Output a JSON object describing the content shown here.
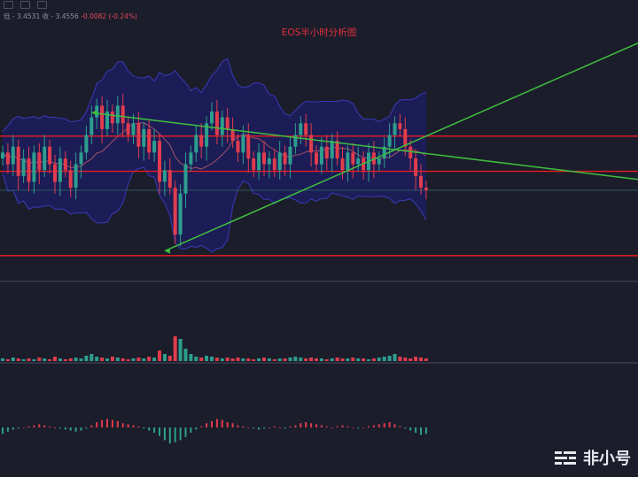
{
  "title": "EOS半小时分析图",
  "ohlc": {
    "low": "低 - 3.4531",
    "close": "收 - 3.4556",
    "change": "-0.0082 (-0.24%)"
  },
  "watermark": "非小号",
  "toolbar_icons": [
    "chart-type-icon",
    "settings-icon",
    "fullscreen-icon"
  ],
  "colors": {
    "background": "#1b1d2b",
    "candle_up": "#2e9e8e",
    "candle_down": "#e03c4d",
    "bollinger_fill": "#1e1e7a",
    "trendline": "#3fbf3f",
    "support_resistance": "#e81c22"
  },
  "chart_data": {
    "type": "candlestick",
    "title": "EOS半小时分析图",
    "close": [
      3.52,
      3.5,
      3.53,
      3.48,
      3.51,
      3.47,
      3.52,
      3.49,
      3.53,
      3.5,
      3.47,
      3.51,
      3.49,
      3.46,
      3.5,
      3.52,
      3.55,
      3.58,
      3.6,
      3.56,
      3.59,
      3.57,
      3.6,
      3.57,
      3.55,
      3.57,
      3.53,
      3.56,
      3.52,
      3.54,
      3.47,
      3.49,
      3.46,
      3.38,
      3.45,
      3.5,
      3.52,
      3.55,
      3.53,
      3.57,
      3.59,
      3.55,
      3.58,
      3.56,
      3.54,
      3.52,
      3.55,
      3.51,
      3.49,
      3.52,
      3.5,
      3.51,
      3.49,
      3.52,
      3.5,
      3.53,
      3.55,
      3.57,
      3.55,
      3.52,
      3.5,
      3.53,
      3.51,
      3.54,
      3.51,
      3.49,
      3.52,
      3.5,
      3.51,
      3.49,
      3.52,
      3.5,
      3.51,
      3.53,
      3.55,
      3.57,
      3.56,
      3.53,
      3.51,
      3.48,
      3.46,
      3.456
    ],
    "volume": [
      3,
      2,
      4,
      3,
      2,
      3,
      2,
      4,
      3,
      2,
      5,
      3,
      2,
      3,
      4,
      3,
      6,
      8,
      5,
      4,
      3,
      5,
      4,
      3,
      2,
      3,
      4,
      3,
      5,
      4,
      12,
      8,
      6,
      28,
      25,
      14,
      8,
      5,
      4,
      6,
      5,
      4,
      3,
      4,
      3,
      4,
      3,
      3,
      2,
      3,
      4,
      3,
      2,
      3,
      3,
      4,
      5,
      4,
      3,
      4,
      3,
      3,
      2,
      3,
      4,
      3,
      3,
      4,
      3,
      3,
      2,
      3,
      4,
      5,
      6,
      8,
      5,
      4,
      3,
      5,
      4,
      3
    ],
    "macd": [
      -6,
      -4,
      -2,
      -1,
      0,
      1,
      2,
      3,
      2,
      1,
      0,
      -1,
      -2,
      -3,
      -4,
      -3,
      -1,
      2,
      5,
      7,
      8,
      7,
      6,
      4,
      3,
      2,
      1,
      -1,
      -3,
      -5,
      -8,
      -12,
      -15,
      -14,
      -12,
      -9,
      -5,
      -2,
      1,
      4,
      6,
      8,
      7,
      5,
      4,
      2,
      1,
      0,
      -1,
      -2,
      -1,
      0,
      1,
      0,
      -1,
      1,
      2,
      4,
      5,
      4,
      3,
      2,
      1,
      0,
      1,
      2,
      1,
      0,
      -1,
      0,
      1,
      2,
      3,
      4,
      5,
      3,
      1,
      -1,
      -3,
      -5,
      -7,
      -6
    ],
    "trendlines": [
      {
        "name": "descending",
        "from": [
          17,
          3.588
        ],
        "to": [
          107,
          3.49
        ]
      },
      {
        "name": "ascending",
        "from": [
          31,
          3.352
        ],
        "to": [
          107,
          3.65
        ]
      }
    ],
    "horizontal_levels": [
      3.548,
      3.488,
      3.344
    ],
    "price_line": 3.4556,
    "ylim": [
      3.3,
      3.72
    ]
  }
}
